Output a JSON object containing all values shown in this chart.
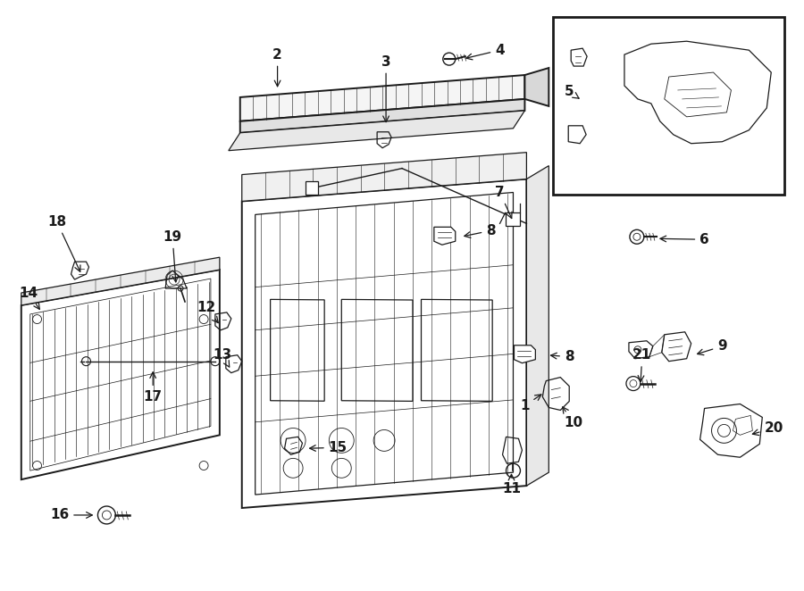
{
  "bg_color": "#ffffff",
  "line_color": "#1a1a1a",
  "fig_width": 9.0,
  "fig_height": 6.62,
  "dpi": 100,
  "label_fontsize": 11,
  "lw_main": 1.4,
  "lw_med": 0.9,
  "lw_thin": 0.55
}
